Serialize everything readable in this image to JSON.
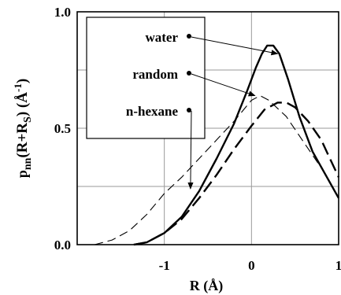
{
  "chart_data": {
    "type": "line",
    "title": "",
    "xlabel": "R (Å)",
    "ylabel_main": "p",
    "ylabel_sub1": "nn",
    "ylabel_mid": "(R+R",
    "ylabel_sub2": "S",
    "ylabel_end": ") (Å",
    "ylabel_sup": "-1",
    "ylabel_close": ")",
    "xlim": [
      -2,
      1
    ],
    "ylim": [
      0,
      1
    ],
    "x_ticks": [
      {
        "value": -1,
        "label": "-1"
      },
      {
        "value": 0,
        "label": "0"
      },
      {
        "value": 1,
        "label": "1"
      }
    ],
    "y_ticks": [
      {
        "value": 0,
        "label": "0.0"
      },
      {
        "value": 0.5,
        "label": "0.5"
      },
      {
        "value": 1,
        "label": "1.0"
      }
    ],
    "grid": true,
    "legend_position": "top-left",
    "series": [
      {
        "name": "water",
        "style": "solid",
        "points": [
          [
            -1.35,
            0
          ],
          [
            -1.2,
            0.01
          ],
          [
            -1.0,
            0.05
          ],
          [
            -0.8,
            0.12
          ],
          [
            -0.6,
            0.23
          ],
          [
            -0.4,
            0.37
          ],
          [
            -0.2,
            0.52
          ],
          [
            -0.05,
            0.66
          ],
          [
            0.05,
            0.76
          ],
          [
            0.12,
            0.82
          ],
          [
            0.18,
            0.855
          ],
          [
            0.25,
            0.855
          ],
          [
            0.32,
            0.82
          ],
          [
            0.42,
            0.71
          ],
          [
            0.55,
            0.55
          ],
          [
            0.7,
            0.4
          ],
          [
            0.85,
            0.3
          ],
          [
            1.0,
            0.2
          ]
        ]
      },
      {
        "name": "random",
        "style": "dashed",
        "points": [
          [
            -1.35,
            0
          ],
          [
            -1.2,
            0.01
          ],
          [
            -1.0,
            0.05
          ],
          [
            -0.8,
            0.11
          ],
          [
            -0.6,
            0.2
          ],
          [
            -0.4,
            0.3
          ],
          [
            -0.2,
            0.41
          ],
          [
            0.0,
            0.51
          ],
          [
            0.15,
            0.58
          ],
          [
            0.3,
            0.61
          ],
          [
            0.4,
            0.61
          ],
          [
            0.5,
            0.59
          ],
          [
            0.65,
            0.53
          ],
          [
            0.8,
            0.45
          ],
          [
            0.9,
            0.37
          ],
          [
            1.0,
            0.29
          ]
        ]
      },
      {
        "name": "n-hexane",
        "style": "thin-dashed",
        "points": [
          [
            -1.8,
            0
          ],
          [
            -1.6,
            0.02
          ],
          [
            -1.4,
            0.06
          ],
          [
            -1.2,
            0.13
          ],
          [
            -1.0,
            0.22
          ],
          [
            -0.8,
            0.29
          ],
          [
            -0.6,
            0.37
          ],
          [
            -0.4,
            0.45
          ],
          [
            -0.2,
            0.53
          ],
          [
            0.0,
            0.62
          ],
          [
            0.1,
            0.64
          ],
          [
            0.2,
            0.62
          ],
          [
            0.4,
            0.55
          ],
          [
            0.6,
            0.44
          ],
          [
            0.8,
            0.33
          ],
          [
            0.9,
            0.27
          ],
          [
            1.0,
            0.2
          ]
        ]
      }
    ],
    "legend": [
      {
        "label": "water",
        "series": 0,
        "arrow_to": [
          0.3,
          0.82
        ]
      },
      {
        "label": "random",
        "series": 1,
        "arrow_to": [
          0.04,
          0.64
        ]
      },
      {
        "label": "n-hexane",
        "series": 2,
        "arrow_to": [
          -0.7,
          0.24
        ]
      }
    ]
  }
}
